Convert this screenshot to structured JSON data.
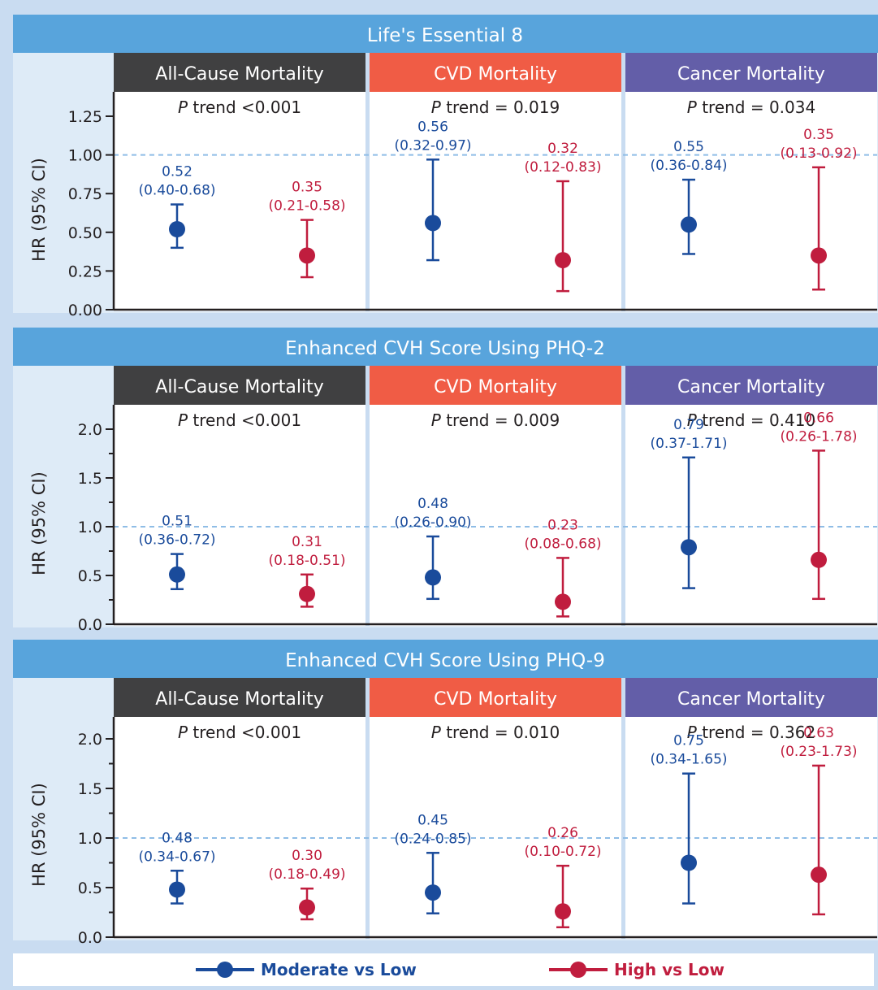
{
  "colors": {
    "moderate": "#1a4b9b",
    "high": "#c01d3e",
    "all_cause_header": "#404041",
    "cvd_header": "#f05c45",
    "cancer_header": "#635ea8",
    "section_header": "#58a4dc",
    "reference_line": "#8fbde6"
  },
  "legend": {
    "moderate_label": "Moderate vs Low",
    "high_label": "High vs Low"
  },
  "chart_data": [
    {
      "type": "scatter",
      "title": "Life's Essential 8",
      "ylabel": "HR (95% CI)",
      "ylim": [
        0,
        1.25
      ],
      "yticks": [
        "0.00",
        "0.25",
        "0.50",
        "0.75",
        "1.00",
        "1.25"
      ],
      "reference_line": 1.0,
      "panels": [
        {
          "outcome": "All-Cause Mortality",
          "p_trend": "trend <0.001",
          "series": [
            {
              "name": "Moderate vs Low",
              "hr": 0.52,
              "lower": 0.4,
              "upper": 0.68,
              "hr_label": "0.52",
              "ci_label": "(0.40-0.68)"
            },
            {
              "name": "High vs Low",
              "hr": 0.35,
              "lower": 0.21,
              "upper": 0.58,
              "hr_label": "0.35",
              "ci_label": "(0.21-0.58)"
            }
          ]
        },
        {
          "outcome": "CVD Mortality",
          "p_trend": "trend = 0.019",
          "series": [
            {
              "name": "Moderate vs Low",
              "hr": 0.56,
              "lower": 0.32,
              "upper": 0.97,
              "hr_label": "0.56",
              "ci_label": "(0.32-0.97)"
            },
            {
              "name": "High vs Low",
              "hr": 0.32,
              "lower": 0.12,
              "upper": 0.83,
              "hr_label": "0.32",
              "ci_label": "(0.12-0.83)"
            }
          ]
        },
        {
          "outcome": "Cancer Mortality",
          "p_trend": "trend = 0.034",
          "series": [
            {
              "name": "Moderate vs Low",
              "hr": 0.55,
              "lower": 0.36,
              "upper": 0.84,
              "hr_label": "0.55",
              "ci_label": "(0.36-0.84)"
            },
            {
              "name": "High vs Low",
              "hr": 0.35,
              "lower": 0.13,
              "upper": 0.92,
              "hr_label": "0.35",
              "ci_label": "(0.13-0.92)"
            }
          ]
        }
      ]
    },
    {
      "type": "scatter",
      "title": "Enhanced CVH Score Using PHQ-2",
      "ylabel": "HR (95% CI)",
      "ylim": [
        0,
        2.0
      ],
      "yticks": [
        "0.0",
        "0.5",
        "1.0",
        "1.5",
        "2.0"
      ],
      "reference_line": 1.0,
      "panels": [
        {
          "outcome": "All-Cause Mortality",
          "p_trend": "trend <0.001",
          "series": [
            {
              "name": "Moderate vs Low",
              "hr": 0.51,
              "lower": 0.36,
              "upper": 0.72,
              "hr_label": "0.51",
              "ci_label": "(0.36-0.72)"
            },
            {
              "name": "High vs Low",
              "hr": 0.31,
              "lower": 0.18,
              "upper": 0.51,
              "hr_label": "0.31",
              "ci_label": "(0.18-0.51)"
            }
          ]
        },
        {
          "outcome": "CVD Mortality",
          "p_trend": "trend = 0.009",
          "series": [
            {
              "name": "Moderate vs Low",
              "hr": 0.48,
              "lower": 0.26,
              "upper": 0.9,
              "hr_label": "0.48",
              "ci_label": "(0.26-0.90)"
            },
            {
              "name": "High vs Low",
              "hr": 0.23,
              "lower": 0.08,
              "upper": 0.68,
              "hr_label": "0.23",
              "ci_label": "(0.08-0.68)"
            }
          ]
        },
        {
          "outcome": "Cancer Mortality",
          "p_trend": "trend = 0.410",
          "series": [
            {
              "name": "Moderate vs Low",
              "hr": 0.79,
              "lower": 0.37,
              "upper": 1.71,
              "hr_label": "0.79",
              "ci_label": "(0.37-1.71)"
            },
            {
              "name": "High vs Low",
              "hr": 0.66,
              "lower": 0.26,
              "upper": 1.78,
              "hr_label": "0.66",
              "ci_label": "(0.26-1.78)"
            }
          ]
        }
      ]
    },
    {
      "type": "scatter",
      "title": "Enhanced CVH Score Using PHQ-9",
      "ylabel": "HR (95% CI)",
      "ylim": [
        0,
        2.0
      ],
      "yticks": [
        "0.0",
        "0.5",
        "1.0",
        "1.5",
        "2.0"
      ],
      "reference_line": 1.0,
      "panels": [
        {
          "outcome": "All-Cause Mortality",
          "p_trend": "trend <0.001",
          "series": [
            {
              "name": "Moderate vs Low",
              "hr": 0.48,
              "lower": 0.34,
              "upper": 0.67,
              "hr_label": "0.48",
              "ci_label": "(0.34-0.67)"
            },
            {
              "name": "High vs Low",
              "hr": 0.3,
              "lower": 0.18,
              "upper": 0.49,
              "hr_label": "0.30",
              "ci_label": "(0.18-0.49)"
            }
          ]
        },
        {
          "outcome": "CVD Mortality",
          "p_trend": "trend = 0.010",
          "series": [
            {
              "name": "Moderate vs Low",
              "hr": 0.45,
              "lower": 0.24,
              "upper": 0.85,
              "hr_label": "0.45",
              "ci_label": "(0.24-0.85)"
            },
            {
              "name": "High vs Low",
              "hr": 0.26,
              "lower": 0.1,
              "upper": 0.72,
              "hr_label": "0.26",
              "ci_label": "(0.10-0.72)"
            }
          ]
        },
        {
          "outcome": "Cancer Mortality",
          "p_trend": "trend = 0.362",
          "series": [
            {
              "name": "Moderate vs Low",
              "hr": 0.75,
              "lower": 0.34,
              "upper": 1.65,
              "hr_label": "0.75",
              "ci_label": "(0.34-1.65)"
            },
            {
              "name": "High vs Low",
              "hr": 0.63,
              "lower": 0.23,
              "upper": 1.73,
              "hr_label": "0.63",
              "ci_label": "(0.23-1.73)"
            }
          ]
        }
      ]
    }
  ]
}
